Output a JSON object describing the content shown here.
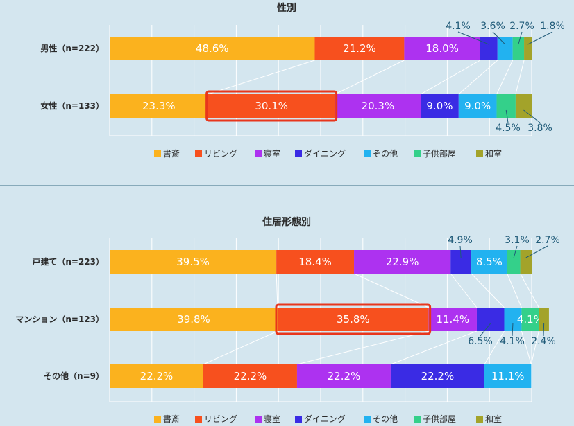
{
  "colors": {
    "background": "#d4e6ef",
    "text": "#2b2b2b",
    "callout_text": "#1f5a78",
    "highlight_border": "#e8361c",
    "grid": "#ffffff"
  },
  "chart_data": [
    {
      "type": "bar",
      "stacked": "horizontal-percent",
      "title": "性別",
      "categories": [
        "男性（n=222）",
        "女性（n=133）"
      ],
      "xlim": [
        0,
        100
      ],
      "grid": true,
      "legend_placement": "bottom",
      "series": [
        {
          "name": "書斎",
          "color": "#fbb21e",
          "values": [
            48.6,
            23.3
          ]
        },
        {
          "name": "リビング",
          "color": "#f7501e",
          "values": [
            21.2,
            30.1
          ]
        },
        {
          "name": "寝室",
          "color": "#ad32f0",
          "values": [
            18.0,
            20.3
          ]
        },
        {
          "name": "ダイニング",
          "color": "#3a2be4",
          "values": [
            4.1,
            9.0
          ]
        },
        {
          "name": "その他",
          "color": "#22b2f0",
          "values": [
            3.6,
            9.0
          ]
        },
        {
          "name": "子供部屋",
          "color": "#34d08a",
          "values": [
            2.7,
            4.5
          ]
        },
        {
          "name": "和室",
          "color": "#a3a32a",
          "values": [
            1.8,
            3.8
          ]
        }
      ],
      "highlight": {
        "category_index": 1,
        "series_index": 1
      }
    },
    {
      "type": "bar",
      "stacked": "horizontal-percent",
      "title": "住居形態別",
      "categories": [
        "戸建て（n=223）",
        "マンション（n=123）",
        "その他（n=9）"
      ],
      "xlim": [
        0,
        100
      ],
      "grid": true,
      "legend_placement": "bottom",
      "series": [
        {
          "name": "書斎",
          "color": "#fbb21e",
          "values": [
            39.5,
            39.8,
            22.2
          ]
        },
        {
          "name": "リビング",
          "color": "#f7501e",
          "values": [
            18.4,
            35.8,
            22.2
          ]
        },
        {
          "name": "寝室",
          "color": "#ad32f0",
          "values": [
            22.9,
            11.4,
            22.2
          ]
        },
        {
          "name": "ダイニング",
          "color": "#3a2be4",
          "values": [
            4.9,
            6.5,
            22.2
          ]
        },
        {
          "name": "その他",
          "color": "#22b2f0",
          "values": [
            8.5,
            4.1,
            11.1
          ]
        },
        {
          "name": "子供部屋",
          "color": "#34d08a",
          "values": [
            3.1,
            4.1,
            0
          ]
        },
        {
          "name": "和室",
          "color": "#a3a32a",
          "values": [
            2.7,
            2.4,
            0
          ]
        }
      ],
      "highlight": {
        "category_index": 1,
        "series_index": 1
      }
    }
  ]
}
